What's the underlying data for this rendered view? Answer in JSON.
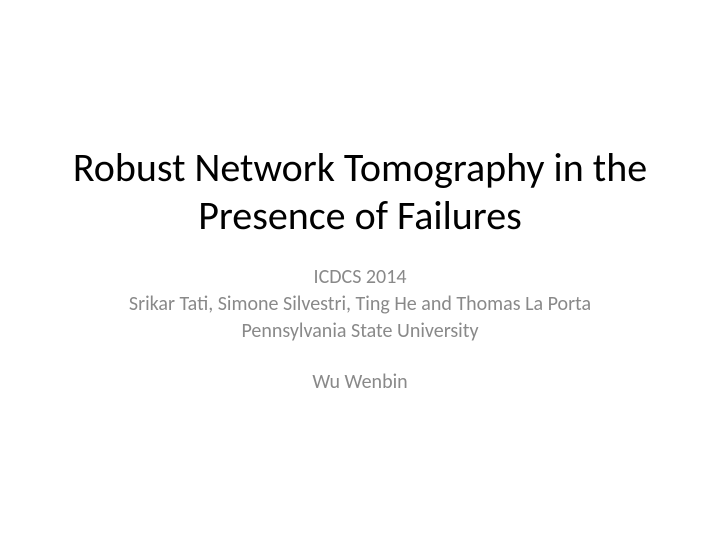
{
  "slide": {
    "title": "Robust Network Tomography in the Presence of Failures",
    "subtitle": {
      "conference": "ICDCS 2014",
      "authors": "Srikar Tati, Simone Silvestri, Ting He and Thomas La Porta",
      "affiliation": "Pennsylvania State University",
      "presenter": "Wu Wenbin"
    },
    "colors": {
      "background": "#ffffff",
      "title_color": "#000000",
      "subtitle_color": "#898989"
    },
    "typography": {
      "title_fontsize": 40,
      "subtitle_fontsize": 20,
      "font_family": "Calibri"
    }
  }
}
